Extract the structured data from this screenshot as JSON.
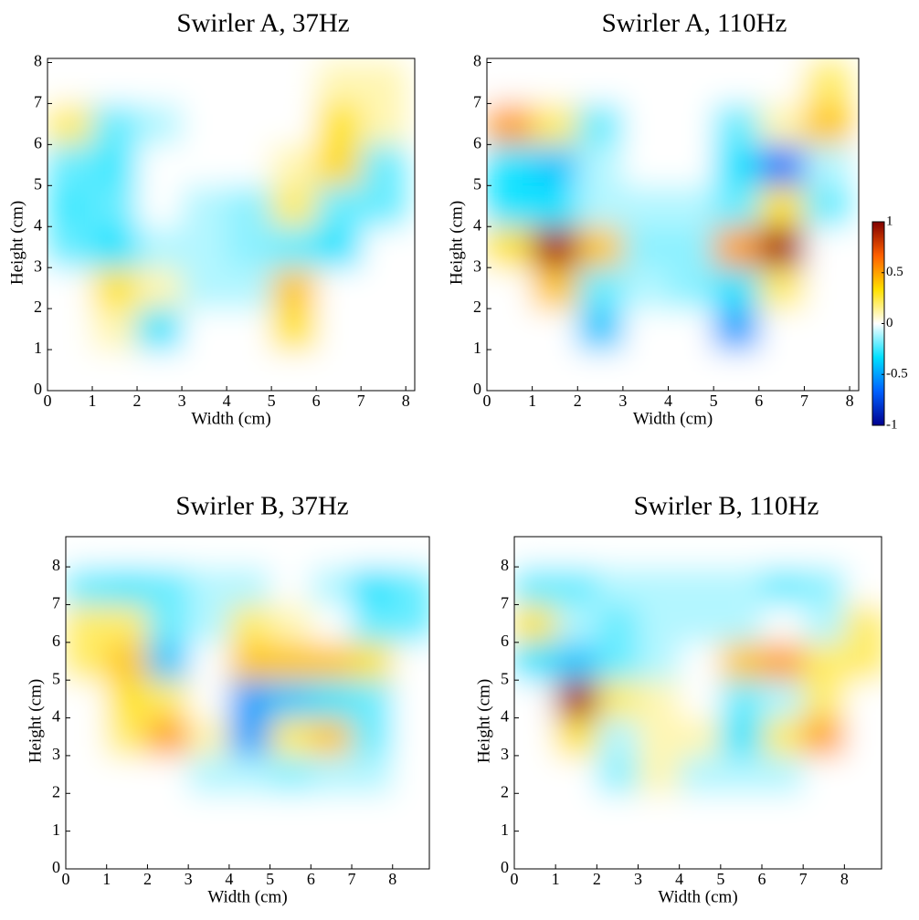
{
  "chart_data": [
    {
      "type": "heatmap",
      "title": "Swirler A, 37Hz",
      "xlabel": "Width (cm)",
      "ylabel": "Height (cm)",
      "xlim": [
        0,
        8.2
      ],
      "ylim": [
        0,
        8.1
      ],
      "xticks": [
        0,
        1,
        2,
        3,
        4,
        5,
        6,
        7,
        8
      ],
      "yticks": [
        0,
        1,
        2,
        3,
        4,
        5,
        6,
        7,
        8
      ],
      "x": [
        0.5,
        1.5,
        2.5,
        3.5,
        4.5,
        5.5,
        6.5,
        7.5
      ],
      "y": [
        0.5,
        1.5,
        2.5,
        3.5,
        4.5,
        5.5,
        6.5,
        7.5
      ],
      "z": [
        [
          0,
          0,
          0,
          0,
          0,
          0,
          0,
          0
        ],
        [
          0,
          0.1,
          -0.3,
          0,
          0,
          0.3,
          0,
          0
        ],
        [
          0,
          0.3,
          0.1,
          -0.1,
          -0.1,
          0.4,
          0,
          0
        ],
        [
          -0.2,
          -0.3,
          -0.1,
          -0.1,
          -0.15,
          -0.2,
          -0.3,
          0
        ],
        [
          -0.25,
          -0.2,
          0,
          -0.1,
          -0.15,
          0.2,
          -0.2,
          -0.2
        ],
        [
          -0.2,
          -0.25,
          0,
          0,
          0,
          0.1,
          0.35,
          -0.2
        ],
        [
          0.2,
          -0.2,
          -0.1,
          0,
          0,
          0,
          0.3,
          0.1
        ],
        [
          0,
          0,
          0,
          0,
          0,
          0,
          0.1,
          0.1
        ]
      ]
    },
    {
      "type": "heatmap",
      "title": "Swirler A, 110Hz",
      "xlabel": "Width (cm)",
      "ylabel": "Height (cm)",
      "xlim": [
        0,
        8.2
      ],
      "ylim": [
        0,
        8.1
      ],
      "xticks": [
        0,
        1,
        2,
        3,
        4,
        5,
        6,
        7,
        8
      ],
      "yticks": [
        0,
        1,
        2,
        3,
        4,
        5,
        6,
        7,
        8
      ],
      "x": [
        0.5,
        1.5,
        2.5,
        3.5,
        4.5,
        5.5,
        6.5,
        7.5
      ],
      "y": [
        0.5,
        1.5,
        2.5,
        3.5,
        4.5,
        5.5,
        6.5,
        7.5
      ],
      "z": [
        [
          0,
          0,
          0,
          0,
          0,
          0,
          0,
          0
        ],
        [
          0,
          0,
          -0.4,
          0,
          0,
          -0.5,
          0,
          0
        ],
        [
          0,
          0.4,
          -0.2,
          -0.1,
          -0.15,
          -0.3,
          0.2,
          0
        ],
        [
          0.3,
          0.9,
          0.4,
          -0.15,
          -0.15,
          0.5,
          0.9,
          0
        ],
        [
          -0.3,
          -0.3,
          -0.1,
          -0.1,
          -0.1,
          -0.2,
          0.3,
          -0.2
        ],
        [
          -0.3,
          -0.4,
          -0.1,
          0,
          0,
          -0.3,
          -0.6,
          -0.1
        ],
        [
          0.5,
          0.2,
          -0.2,
          0,
          0,
          -0.2,
          0.1,
          0.4
        ],
        [
          0,
          0,
          0,
          0,
          0,
          0,
          0,
          0.2
        ]
      ]
    },
    {
      "type": "heatmap",
      "title": "Swirler B, 37Hz",
      "xlabel": "Width (cm)",
      "ylabel": "Height (cm)",
      "xlim": [
        0,
        8.9
      ],
      "ylim": [
        0,
        8.8
      ],
      "xticks": [
        0,
        1,
        2,
        3,
        4,
        5,
        6,
        7,
        8
      ],
      "yticks": [
        0,
        1,
        2,
        3,
        4,
        5,
        6,
        7,
        8
      ],
      "x": [
        0.5,
        1.5,
        2.5,
        3.5,
        4.5,
        5.5,
        6.5,
        7.5,
        8.5
      ],
      "y": [
        0.5,
        1.5,
        2.5,
        3.5,
        4.5,
        5.5,
        6.5,
        7.5,
        8.5
      ],
      "z": [
        [
          0,
          0,
          0,
          0,
          0,
          0,
          0,
          0,
          0
        ],
        [
          0,
          0,
          0,
          0,
          0,
          0,
          0,
          0,
          0
        ],
        [
          0,
          0,
          0,
          -0.1,
          -0.1,
          -0.15,
          -0.1,
          -0.1,
          0
        ],
        [
          0,
          0.2,
          0.5,
          0.1,
          -0.5,
          0.2,
          0.4,
          -0.2,
          0
        ],
        [
          0,
          0.3,
          0.2,
          0,
          -0.5,
          -0.4,
          -0.3,
          -0.2,
          0
        ],
        [
          0.2,
          0.4,
          -0.4,
          0,
          0.4,
          0.4,
          0.4,
          0.3,
          0
        ],
        [
          0.2,
          0.2,
          -0.2,
          -0.1,
          0.2,
          0.1,
          0,
          -0.2,
          -0.2
        ],
        [
          -0.2,
          -0.25,
          -0.2,
          -0.1,
          -0.1,
          0,
          -0.1,
          -0.3,
          -0.2
        ],
        [
          0,
          0,
          0,
          0,
          0,
          0,
          0,
          0,
          0
        ]
      ]
    },
    {
      "type": "heatmap",
      "title": "Swirler B, 110Hz",
      "xlabel": "Width (cm)",
      "ylabel": "Height (cm)",
      "xlim": [
        0,
        8.9
      ],
      "ylim": [
        0,
        8.8
      ],
      "xticks": [
        0,
        1,
        2,
        3,
        4,
        5,
        6,
        7,
        8
      ],
      "yticks": [
        0,
        1,
        2,
        3,
        4,
        5,
        6,
        7,
        8
      ],
      "x": [
        0.5,
        1.5,
        2.5,
        3.5,
        4.5,
        5.5,
        6.5,
        7.5,
        8.5
      ],
      "y": [
        0.5,
        1.5,
        2.5,
        3.5,
        4.5,
        5.5,
        6.5,
        7.5,
        8.5
      ],
      "z": [
        [
          0,
          0,
          0,
          0,
          0,
          0,
          0,
          0,
          0
        ],
        [
          0,
          0,
          0,
          0,
          0,
          0,
          0,
          0,
          0
        ],
        [
          0,
          0,
          -0.15,
          0.1,
          -0.1,
          -0.1,
          -0.1,
          0,
          0
        ],
        [
          0,
          0.3,
          -0.1,
          0.1,
          0.1,
          -0.3,
          0.2,
          0.5,
          0
        ],
        [
          0,
          0.9,
          0.2,
          0.1,
          0,
          -0.2,
          -0.1,
          0.2,
          0
        ],
        [
          -0.3,
          -0.4,
          -0.2,
          -0.1,
          0,
          0.4,
          0.5,
          0.2,
          0.2
        ],
        [
          0.3,
          -0.1,
          -0.2,
          -0.1,
          -0.1,
          -0.1,
          0,
          -0.1,
          0.2
        ],
        [
          -0.2,
          -0.2,
          -0.1,
          -0.1,
          -0.1,
          -0.1,
          -0.2,
          -0.15,
          0
        ],
        [
          0,
          0,
          0,
          0,
          0,
          0,
          0,
          0,
          0
        ]
      ]
    }
  ],
  "colorbar": {
    "clim": [
      -1,
      1
    ],
    "ticks": [
      1,
      0.5,
      0,
      -0.5,
      -1
    ],
    "colormap": [
      "#00008f",
      "#0060ff",
      "#00e0ff",
      "#ffffff",
      "#ffe000",
      "#ff6000",
      "#800000"
    ]
  }
}
